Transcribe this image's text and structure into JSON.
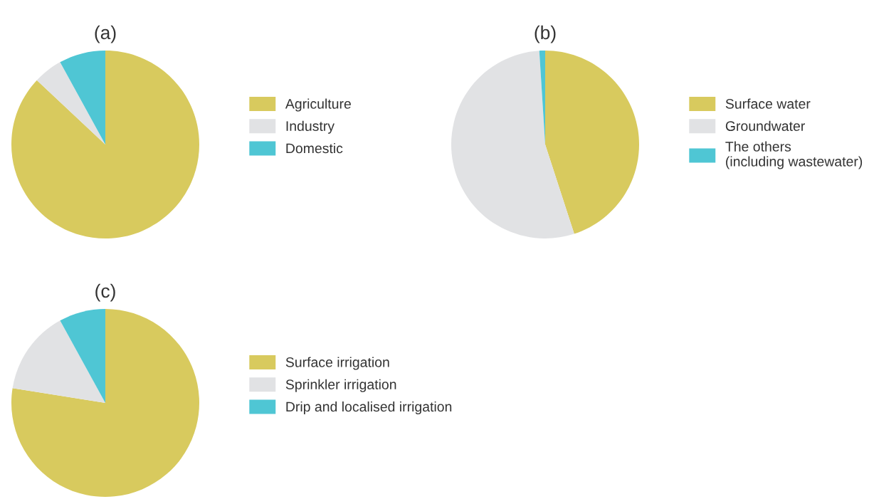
{
  "chart_data": [
    {
      "type": "pie",
      "title": "(a)",
      "categories": [
        "Agriculture",
        "Industry",
        "Domestic"
      ],
      "values": [
        87,
        5,
        8
      ],
      "colors": [
        "#d8ca5e",
        "#e1e2e4",
        "#4fc6d4"
      ],
      "legend": "right"
    },
    {
      "type": "pie",
      "title": "(b)",
      "categories": [
        "Surface water",
        "Groundwater",
        "The others\n(including wastewater)"
      ],
      "values": [
        45,
        54,
        1
      ],
      "colors": [
        "#d8ca5e",
        "#e1e2e4",
        "#4fc6d4"
      ],
      "legend": "right"
    },
    {
      "type": "pie",
      "title": "(c)",
      "categories": [
        "Surface irrigation",
        "Sprinkler irrigation",
        "Drip and localised irrigation"
      ],
      "values": [
        77.5,
        14.5,
        8
      ],
      "colors": [
        "#d8ca5e",
        "#e1e2e4",
        "#4fc6d4"
      ],
      "legend": "right"
    }
  ]
}
